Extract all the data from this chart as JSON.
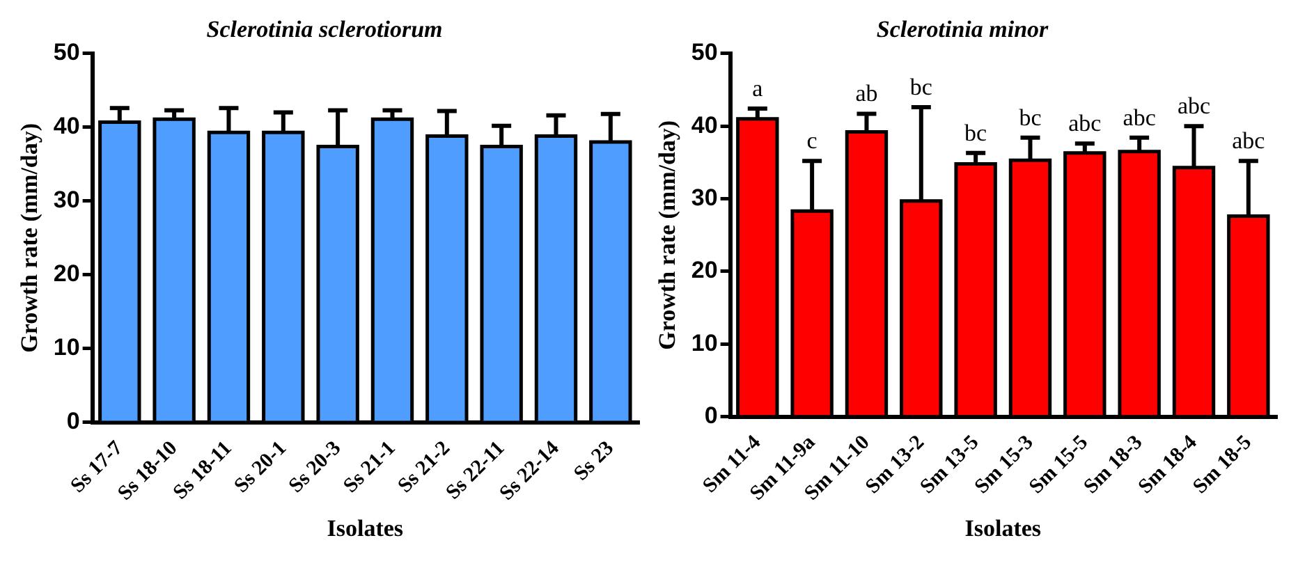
{
  "chart_data": [
    {
      "type": "bar",
      "title": "Sclerotinia sclerotiorum",
      "xlabel": "Isolates",
      "ylabel": "Growth rate (mm/day)",
      "categories": [
        "Ss 17-7",
        "Ss 18-10",
        "Ss 18-11",
        "Ss 20-1",
        "Ss 20-3",
        "Ss 21-1",
        "Ss 21-2",
        "Ss 22-11",
        "Ss 22-14",
        "Ss 23"
      ],
      "values": [
        40.7,
        41.1,
        39.3,
        39.3,
        37.4,
        41.1,
        38.8,
        37.4,
        38.8,
        38.0
      ],
      "errors": [
        [
          40.7,
          42.6
        ],
        [
          41.1,
          42.3
        ],
        [
          39.3,
          42.6
        ],
        [
          39.3,
          42.0
        ],
        [
          37.4,
          42.3
        ],
        [
          41.1,
          42.3
        ],
        [
          38.8,
          42.2
        ],
        [
          37.4,
          40.2
        ],
        [
          38.8,
          41.6
        ],
        [
          38.0,
          41.8
        ]
      ],
      "color": "#4f9dff",
      "ylim": [
        0,
        50
      ],
      "yticks": [
        0,
        10,
        20,
        30,
        40,
        50
      ],
      "legend": false
    },
    {
      "type": "bar",
      "title": "Sclerotinia minor",
      "xlabel": "Isolates",
      "ylabel": "Growth rate (mm/day)",
      "categories": [
        "Sm 11-4",
        "Sm 11-9a",
        "Sm 11-10",
        "Sm 13-2",
        "Sm 13-5",
        "Sm 15-3",
        "Sm 15-5",
        "Sm 18-3",
        "Sm 18-4",
        "Sm 18-5"
      ],
      "values": [
        41.0,
        28.3,
        39.2,
        29.7,
        34.8,
        35.3,
        36.3,
        36.5,
        34.3,
        27.6
      ],
      "errors": [
        [
          41.0,
          42.4
        ],
        [
          28.3,
          35.2
        ],
        [
          39.2,
          41.7
        ],
        [
          29.7,
          42.6
        ],
        [
          34.8,
          36.3
        ],
        [
          35.3,
          38.4
        ],
        [
          36.3,
          37.6
        ],
        [
          36.5,
          38.4
        ],
        [
          34.3,
          40.0
        ],
        [
          27.6,
          35.2
        ]
      ],
      "color": "#ff0000",
      "ylim": [
        0,
        50
      ],
      "yticks": [
        0,
        10,
        20,
        30,
        40,
        50
      ],
      "legend": false,
      "annotations": [
        {
          "text": "a",
          "x": "Sm 11-4",
          "y": 42.4
        },
        {
          "text": "c",
          "x": "Sm 11-9a",
          "y": 35.2
        },
        {
          "text": "ab",
          "x": "Sm 11-10",
          "y": 41.7
        },
        {
          "text": "bc",
          "x": "Sm 13-2",
          "y": 42.6
        },
        {
          "text": "bc",
          "x": "Sm 13-5",
          "y": 36.3
        },
        {
          "text": "bc",
          "x": "Sm 15-3",
          "y": 38.4
        },
        {
          "text": "abc",
          "x": "Sm 15-5",
          "y": 37.6
        },
        {
          "text": "abc",
          "x": "Sm 18-3",
          "y": 38.4
        },
        {
          "text": "abc",
          "x": "Sm 18-4",
          "y": 40.0
        },
        {
          "text": "abc",
          "x": "Sm 18-5",
          "y": 35.2
        }
      ]
    }
  ]
}
